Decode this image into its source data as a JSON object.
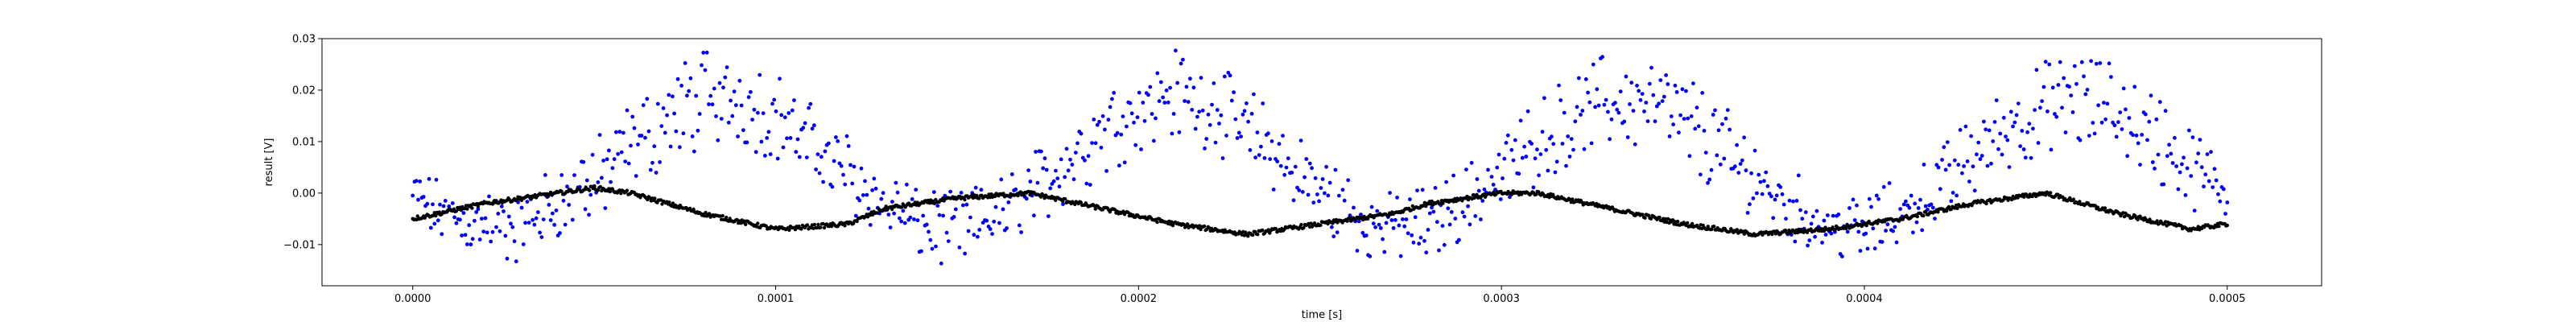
{
  "chart_data": {
    "type": "scatter",
    "xlabel": "time [s]",
    "ylabel": "result [V]",
    "xlim": [
      -2.5e-05,
      0.000526
    ],
    "ylim": [
      -0.018,
      0.03
    ],
    "xticks": [
      {
        "value": 0.0,
        "label": "0.0000"
      },
      {
        "value": 0.0001,
        "label": "0.0001"
      },
      {
        "value": 0.0002,
        "label": "0.0002"
      },
      {
        "value": 0.0003,
        "label": "0.0003"
      },
      {
        "value": 0.0004,
        "label": "0.0004"
      },
      {
        "value": 0.0005,
        "label": "0.0005"
      }
    ],
    "yticks": [
      {
        "value": -0.01,
        "label": "−0.01"
      },
      {
        "value": 0.0,
        "label": "0.00"
      },
      {
        "value": 0.01,
        "label": "0.01"
      },
      {
        "value": 0.02,
        "label": "0.02"
      },
      {
        "value": 0.03,
        "label": "0.03"
      }
    ],
    "grid": false,
    "series": [
      {
        "color": "#0000ff",
        "x": [
          0.0,
          1e-05,
          2e-05,
          3e-05,
          4e-05,
          5e-05,
          6e-05,
          7e-05,
          8e-05,
          9e-05,
          0.0001,
          0.00011,
          0.00012,
          0.00013,
          0.00014,
          0.00015,
          0.00016,
          0.00017,
          0.00018,
          0.00019,
          0.0002,
          0.00021,
          0.00022,
          0.00023,
          0.00024,
          0.00025,
          0.00026,
          0.00027,
          0.00028,
          0.00029,
          0.0003,
          0.00031,
          0.00032,
          0.00033,
          0.00034,
          0.00035,
          0.00036,
          0.00037,
          0.00038,
          0.00039,
          0.0004,
          0.00041,
          0.00042,
          0.00043,
          0.00044,
          0.00045,
          0.00046,
          0.00047,
          0.00048,
          0.00049,
          0.0005
        ],
        "y": [
          0.0,
          -0.004,
          -0.007,
          -0.006,
          -0.002,
          0.003,
          0.009,
          0.014,
          0.018,
          0.018,
          0.015,
          0.01,
          0.004,
          -0.002,
          -0.006,
          -0.007,
          -0.005,
          0.0,
          0.006,
          0.012,
          0.017,
          0.019,
          0.017,
          0.012,
          0.006,
          0.0,
          -0.005,
          -0.007,
          -0.006,
          -0.002,
          0.004,
          0.01,
          0.015,
          0.018,
          0.018,
          0.014,
          0.009,
          0.003,
          -0.003,
          -0.006,
          -0.007,
          -0.004,
          0.001,
          0.007,
          0.013,
          0.017,
          0.018,
          0.016,
          0.011,
          0.005,
          0.0
        ],
        "spread": [
          0.006,
          0.008,
          0.009,
          0.009,
          0.009,
          0.01,
          0.011,
          0.012,
          0.012,
          0.011,
          0.011,
          0.01,
          0.009,
          0.009,
          0.009,
          0.009,
          0.009,
          0.009,
          0.01,
          0.011,
          0.012,
          0.012,
          0.011,
          0.011,
          0.01,
          0.01,
          0.009,
          0.009,
          0.009,
          0.009,
          0.01,
          0.011,
          0.011,
          0.012,
          0.012,
          0.011,
          0.011,
          0.01,
          0.009,
          0.009,
          0.009,
          0.009,
          0.009,
          0.01,
          0.011,
          0.011,
          0.012,
          0.011,
          0.011,
          0.01,
          0.009
        ]
      },
      {
        "color": "#000000",
        "x": [
          0.0,
          2e-05,
          4e-05,
          5e-05,
          6e-05,
          8e-05,
          0.0001,
          0.00012,
          0.00013,
          0.00015,
          0.00017,
          0.00019,
          0.00021,
          0.00023,
          0.00025,
          0.00027,
          0.00028,
          0.0003,
          0.00031,
          0.00033,
          0.00035,
          0.00037,
          0.00039,
          0.00041,
          0.00043,
          0.00045,
          0.00047,
          0.00049,
          0.0005
        ],
        "y": [
          -0.005,
          -0.002,
          0.0,
          0.001,
          0.0,
          -0.004,
          -0.007,
          -0.006,
          -0.003,
          -0.001,
          0.0,
          -0.003,
          -0.006,
          -0.008,
          -0.006,
          -0.004,
          -0.002,
          0.0,
          0.0,
          -0.003,
          -0.006,
          -0.008,
          -0.007,
          -0.005,
          -0.002,
          0.0,
          -0.004,
          -0.007,
          -0.006
        ]
      }
    ]
  }
}
